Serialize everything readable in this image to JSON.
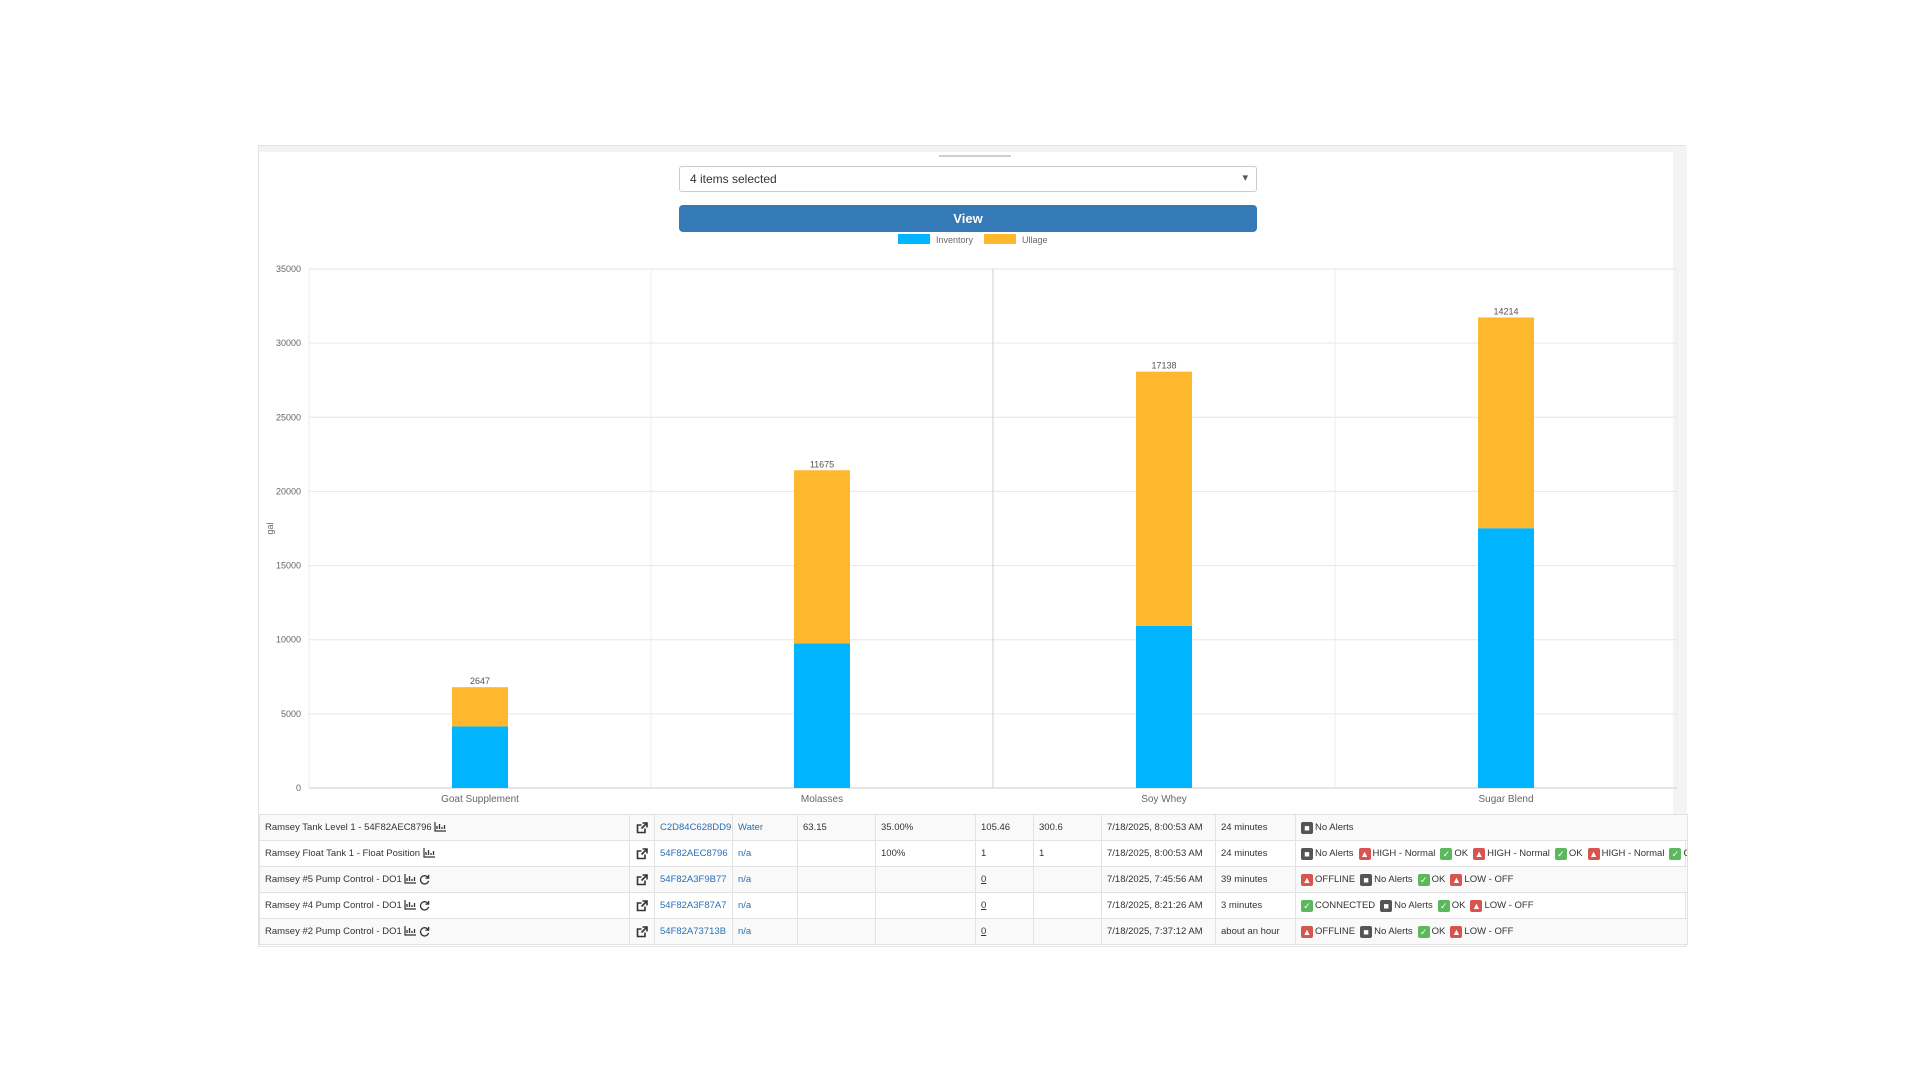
{
  "filter": {
    "selected_text": "4 items selected",
    "caret": "▾"
  },
  "view_button": {
    "label": "View"
  },
  "chart_data": {
    "type": "bar",
    "stacked": true,
    "categories": [
      "Goat Supplement",
      "Molasses",
      "Soy Whey",
      "Sugar Blend"
    ],
    "series": [
      {
        "name": "Inventory",
        "color": "#00b4ff",
        "values": [
          4153,
          9753,
          10940,
          17518
        ]
      },
      {
        "name": "Ullage",
        "color": "#ffb82e",
        "values": [
          2647,
          11675,
          17138,
          14214
        ]
      }
    ],
    "ylabel": "gal",
    "ylim": [
      0,
      35000
    ],
    "yticks": [
      "0",
      "5000",
      "10000",
      "15000",
      "20000",
      "25000",
      "30000",
      "35000"
    ],
    "legend_position": "top-center",
    "grid": true
  },
  "table": {
    "rows": [
      {
        "name": "Ramsey Tank Level 1 - 54F82AEC8796",
        "extra_icon": "chart-icon",
        "device": "C2D84C628DD9",
        "product": "Water",
        "c4": "63.15",
        "c5": "35.00%",
        "c6": "105.46",
        "c7": "300.6",
        "time": "7/18/2025, 8:00:53 AM",
        "ago": "24 minutes",
        "alerts": [
          {
            "color": "gray",
            "text": "No Alerts"
          }
        ]
      },
      {
        "name": "Ramsey Float Tank 1 - Float Position",
        "extra_icon": "chart-icon",
        "device": "54F82AEC8796",
        "product": "n/a",
        "c4": "",
        "c5": "100%",
        "c6": "1",
        "c7": "1",
        "time": "7/18/2025, 8:00:53 AM",
        "ago": "24 minutes",
        "alerts": [
          {
            "color": "gray",
            "text": "No Alerts"
          },
          {
            "color": "red",
            "text": "HIGH - Normal"
          },
          {
            "color": "green",
            "text": "OK"
          },
          {
            "color": "red",
            "text": "HIGH - Normal"
          },
          {
            "color": "green",
            "text": "OK"
          },
          {
            "color": "red",
            "text": "HIGH - Normal"
          },
          {
            "color": "green",
            "text": "OK"
          }
        ]
      },
      {
        "name": "Ramsey #5 Pump Control - DO1",
        "extra_icon": "chart-icon",
        "device": "54F82A3F9B77",
        "product": "n/a",
        "c4": "",
        "c5": "",
        "c6": "0",
        "c7": "",
        "time": "7/18/2025, 7:45:56 AM",
        "ago": "39 minutes",
        "alerts": [
          {
            "color": "red",
            "text": "OFFLINE"
          },
          {
            "color": "gray",
            "text": "No Alerts"
          },
          {
            "color": "green",
            "text": "OK"
          },
          {
            "color": "red",
            "text": "LOW - OFF"
          }
        ]
      },
      {
        "name": "Ramsey #4 Pump Control - DO1",
        "extra_icon": "chart-icon",
        "device": "54F82A3F87A7",
        "product": "n/a",
        "c4": "",
        "c5": "",
        "c6": "0",
        "c7": "",
        "time": "7/18/2025, 8:21:26 AM",
        "ago": "3 minutes",
        "alerts": [
          {
            "color": "green",
            "text": "CONNECTED"
          },
          {
            "color": "gray",
            "text": "No Alerts"
          },
          {
            "color": "green",
            "text": "OK"
          },
          {
            "color": "red",
            "text": "LOW - OFF"
          }
        ]
      },
      {
        "name": "Ramsey #2 Pump Control - DO1",
        "extra_icon": "chart-icon",
        "device": "54F82A73713B",
        "product": "n/a",
        "c4": "",
        "c5": "",
        "c6": "0",
        "c7": "",
        "time": "7/18/2025, 7:37:12 AM",
        "ago": "about an hour",
        "alerts": [
          {
            "color": "red",
            "text": "OFFLINE"
          },
          {
            "color": "gray",
            "text": "No Alerts"
          },
          {
            "color": "green",
            "text": "OK"
          },
          {
            "color": "red",
            "text": "LOW - OFF"
          }
        ]
      }
    ]
  }
}
